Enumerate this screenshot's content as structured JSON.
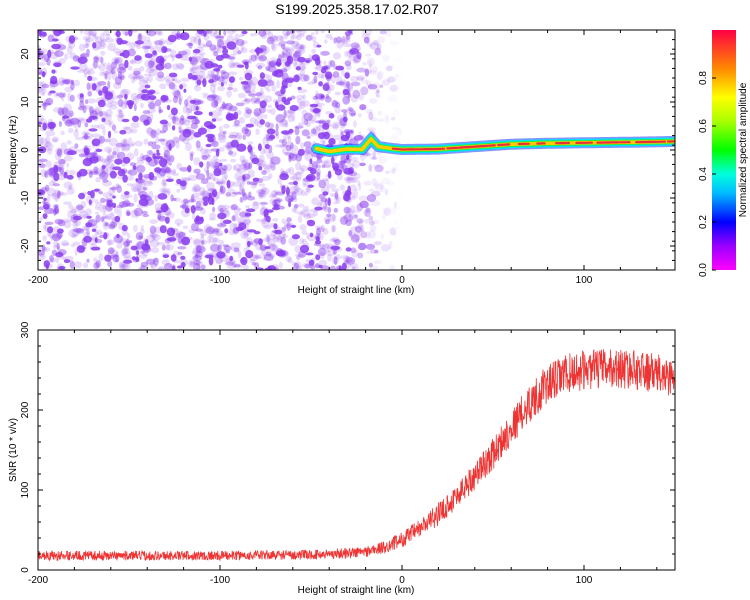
{
  "title": "S199.2025.358.17.02.R07",
  "colors": {
    "noise": "#8a3cf0",
    "signal_ridge": "#e8303a",
    "snr_line": "#ee3333",
    "axis": "#000000"
  },
  "chart_data": [
    {
      "type": "heatmap",
      "xlabel": "Height of straight line (km)",
      "ylabel": "Frequency (Hz)",
      "xlim": [
        -200,
        150
      ],
      "ylim": [
        -25,
        25
      ],
      "x_ticks": [
        -200,
        -100,
        0,
        100
      ],
      "y_ticks": [
        -20,
        -10,
        0,
        10,
        20
      ],
      "colorbar": {
        "label": "Normalized spectral amplitude",
        "range": [
          0,
          1
        ],
        "ticks": [
          0.0,
          0.2,
          0.4,
          0.6,
          0.8
        ],
        "colormap": "rainbow"
      },
      "noise_region": {
        "x_start": -200,
        "x_end": -30,
        "fade_end": 0
      },
      "ridge": {
        "x": [
          -47,
          -40,
          -30,
          -22,
          -17,
          -13,
          -5,
          0,
          20,
          40,
          60,
          80,
          100,
          120,
          140,
          150
        ],
        "frequency": [
          0.3,
          -0.3,
          0.2,
          0.1,
          2.3,
          0.7,
          0.3,
          0.1,
          0.2,
          0.7,
          1.2,
          1.4,
          1.5,
          1.6,
          1.7,
          1.8
        ]
      }
    },
    {
      "type": "line",
      "xlabel": "Height of straight line (km)",
      "ylabel": "SNR (10 * v/v)",
      "xlim": [
        -200,
        150
      ],
      "ylim": [
        0,
        300
      ],
      "x_ticks": [
        -200,
        -100,
        0,
        100
      ],
      "y_ticks": [
        0,
        100,
        200,
        300
      ],
      "series": [
        {
          "x": [
            -200,
            -150,
            -100,
            -50,
            -30,
            -20,
            -10,
            0,
            10,
            20,
            30,
            40,
            50,
            60,
            70,
            80,
            90,
            100,
            110,
            120,
            130,
            140,
            150
          ],
          "values": [
            18,
            18,
            18,
            19,
            21,
            23,
            28,
            38,
            52,
            70,
            92,
            118,
            145,
            178,
            208,
            232,
            245,
            250,
            252,
            252,
            250,
            245,
            240
          ],
          "noise_amplitude": [
            6,
            6,
            6,
            6,
            7,
            7,
            8,
            10,
            12,
            14,
            16,
            18,
            20,
            22,
            24,
            25,
            25,
            25,
            25,
            25,
            25,
            25,
            25
          ]
        }
      ]
    }
  ]
}
